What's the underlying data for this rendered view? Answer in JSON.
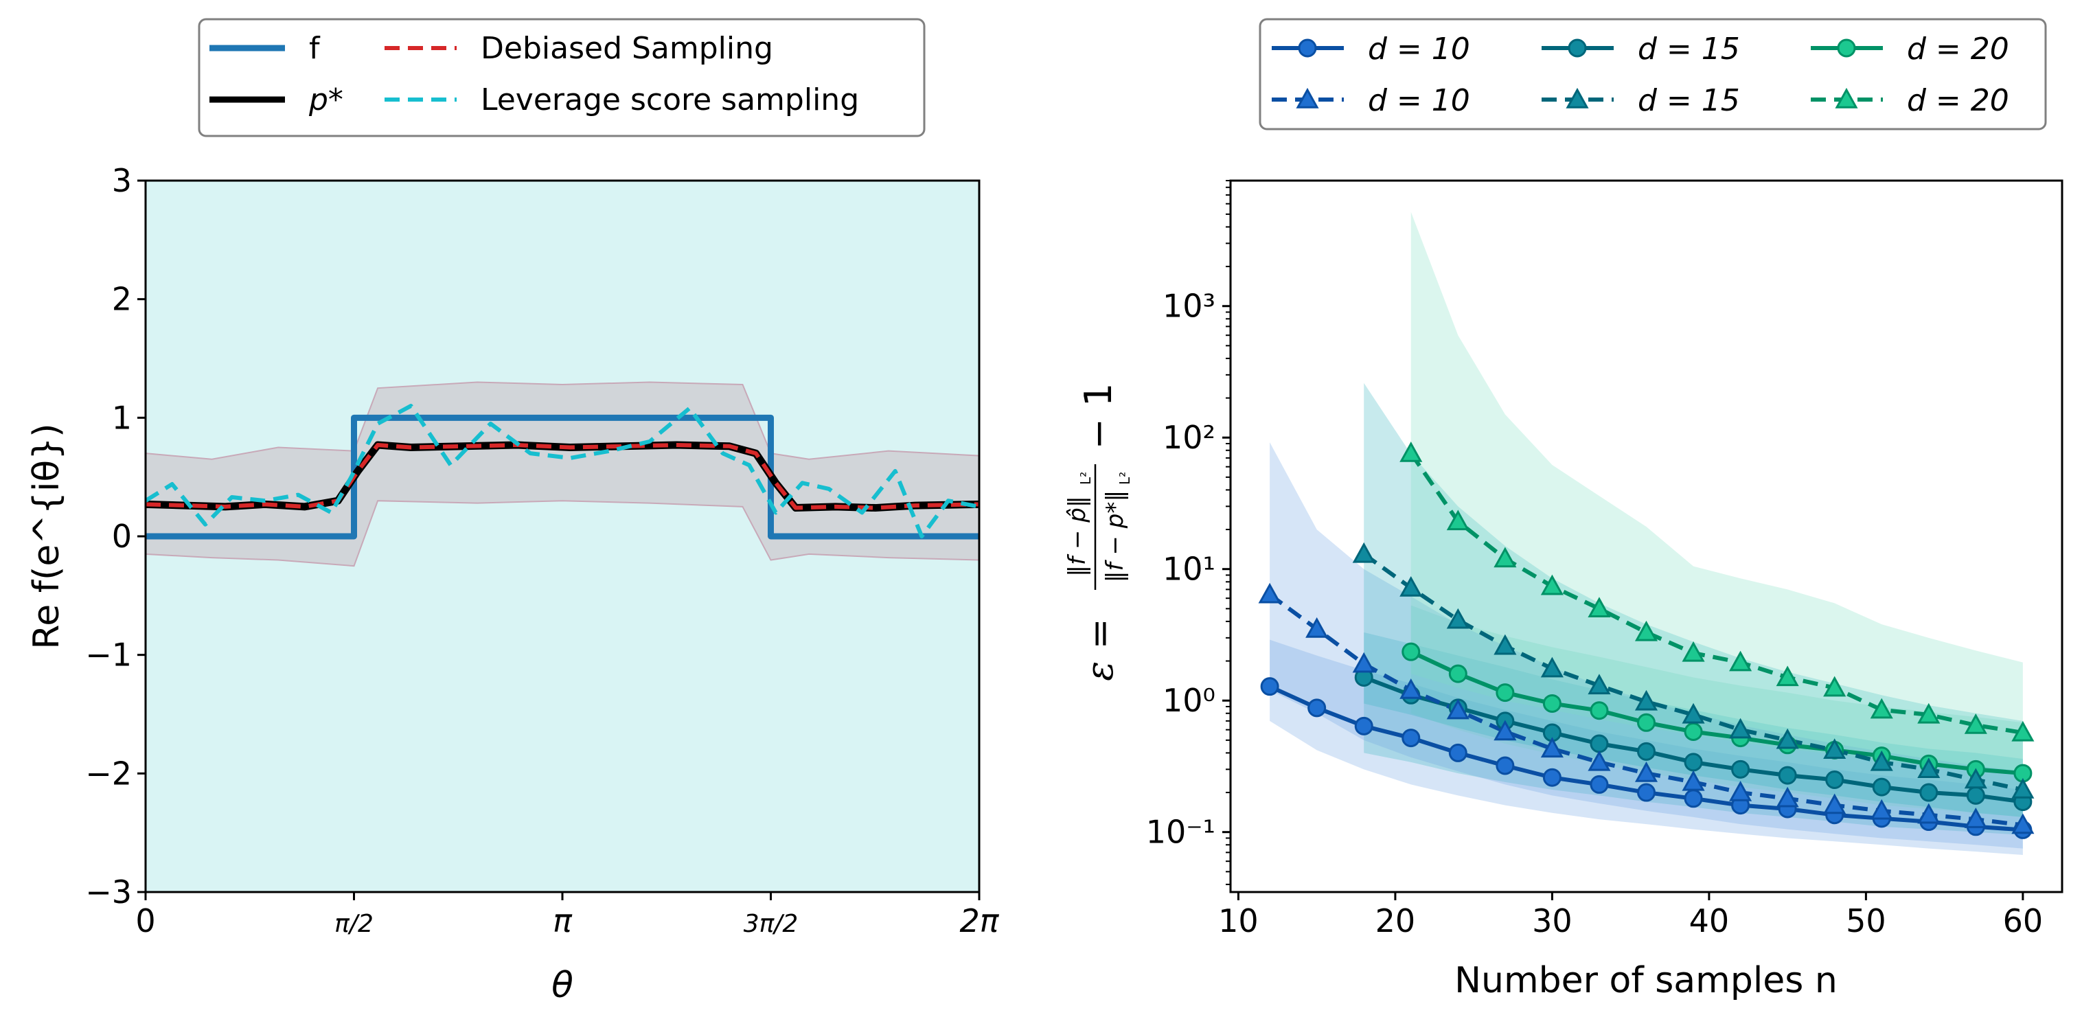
{
  "chart_data": [
    {
      "type": "line",
      "title": "",
      "xlabel": "θ",
      "ylabel": "Re f(e^{iθ})",
      "xlim": [
        0,
        6.2832
      ],
      "ylim": [
        -3,
        3
      ],
      "background": "#d9f4f4",
      "xticks": [
        {
          "value": 0,
          "label": "0"
        },
        {
          "value": 1.5708,
          "label": "π/2"
        },
        {
          "value": 3.1416,
          "label": "π"
        },
        {
          "value": 4.7124,
          "label": "3π/2"
        },
        {
          "value": 6.2832,
          "label": "2π"
        }
      ],
      "yticks": [
        {
          "value": 3,
          "label": "3"
        },
        {
          "value": 2,
          "label": "2"
        },
        {
          "value": 1,
          "label": "1"
        },
        {
          "value": 0,
          "label": "0"
        },
        {
          "value": -1,
          "label": "−1"
        },
        {
          "value": -2,
          "label": "−2"
        },
        {
          "value": -3,
          "label": "−3"
        }
      ],
      "legend": {
        "placement": "top",
        "entries": [
          {
            "label": "f",
            "color": "#1f77b4",
            "style": "solid"
          },
          {
            "label": "p*",
            "color": "#000000",
            "style": "solid"
          },
          {
            "label": "Debiased Sampling",
            "color": "#d62728",
            "style": "dashed"
          },
          {
            "label": "Leverage score sampling",
            "color": "#17becf",
            "style": "dashed"
          }
        ]
      },
      "series": [
        {
          "name": "f",
          "color": "#1f77b4",
          "x": [
            0,
            1.5708,
            1.5708,
            4.7124,
            4.7124,
            6.2832
          ],
          "y": [
            0,
            0,
            1,
            1,
            0,
            0
          ]
        },
        {
          "name": "p*",
          "color": "#000000",
          "x": [
            0,
            0.3,
            0.6,
            0.9,
            1.2,
            1.45,
            1.6,
            1.75,
            2.0,
            2.4,
            2.8,
            3.2,
            3.6,
            4.0,
            4.4,
            4.6,
            4.75,
            4.9,
            5.2,
            5.5,
            5.8,
            6.2832
          ],
          "y": [
            0.27,
            0.26,
            0.25,
            0.27,
            0.25,
            0.3,
            0.55,
            0.77,
            0.75,
            0.76,
            0.77,
            0.75,
            0.76,
            0.77,
            0.76,
            0.7,
            0.45,
            0.24,
            0.25,
            0.24,
            0.26,
            0.27
          ]
        },
        {
          "name": "Debiased Sampling",
          "color": "#d62728",
          "x": [
            0,
            0.3,
            0.6,
            0.9,
            1.2,
            1.45,
            1.6,
            1.75,
            2.0,
            2.4,
            2.8,
            3.2,
            3.6,
            4.0,
            4.4,
            4.6,
            4.75,
            4.9,
            5.2,
            5.5,
            5.8,
            6.2832
          ],
          "y": [
            0.27,
            0.26,
            0.25,
            0.27,
            0.25,
            0.3,
            0.55,
            0.77,
            0.75,
            0.76,
            0.77,
            0.75,
            0.76,
            0.77,
            0.76,
            0.7,
            0.45,
            0.24,
            0.25,
            0.24,
            0.26,
            0.27
          ]
        },
        {
          "name": "Leverage score sampling",
          "color": "#17becf",
          "x": [
            0,
            0.2,
            0.45,
            0.65,
            0.9,
            1.15,
            1.4,
            1.55,
            1.75,
            2.0,
            2.3,
            2.6,
            2.9,
            3.2,
            3.5,
            3.8,
            4.1,
            4.35,
            4.55,
            4.75,
            4.95,
            5.15,
            5.4,
            5.65,
            5.85,
            6.05,
            6.2832
          ],
          "y": [
            0.3,
            0.44,
            0.1,
            0.33,
            0.3,
            0.35,
            0.2,
            0.5,
            0.95,
            1.1,
            0.6,
            0.95,
            0.7,
            0.66,
            0.72,
            0.8,
            1.08,
            0.7,
            0.6,
            0.2,
            0.45,
            0.4,
            0.2,
            0.55,
            0.0,
            0.3,
            0.25
          ]
        }
      ],
      "band": {
        "label": "shaded region",
        "color": "#cfcfd4",
        "x": [
          0,
          0.5,
          1.0,
          1.5708,
          1.75,
          2.5,
          3.1416,
          3.8,
          4.5,
          4.7124,
          5.0,
          5.6,
          6.2832
        ],
        "upper": [
          0.7,
          0.65,
          0.75,
          0.72,
          1.25,
          1.3,
          1.28,
          1.3,
          1.28,
          0.7,
          0.65,
          0.72,
          0.68
        ],
        "lower": [
          -0.15,
          -0.18,
          -0.2,
          -0.25,
          0.3,
          0.28,
          0.3,
          0.28,
          0.25,
          -0.2,
          -0.15,
          -0.18,
          -0.2
        ]
      }
    },
    {
      "type": "line",
      "title": "",
      "xlabel": "Number of samples n",
      "ylabel": "ε = (‖f − p̂‖ / ‖f − p*‖) − 1",
      "ylabel_parts": {
        "lhs": "ε =",
        "num": "‖f − p̂‖",
        "num_sub": "L²",
        "den": "‖f − p*‖",
        "den_sub": "L²",
        "rhs": "− 1"
      },
      "yscale": "log",
      "xlim": [
        9.5,
        62.5
      ],
      "ylim": [
        0.035,
        9000
      ],
      "xticks": [
        10,
        20,
        30,
        40,
        50,
        60
      ],
      "ytick_labels": [
        {
          "value": 0.1,
          "label": "10⁻¹"
        },
        {
          "value": 1,
          "label": "10⁰"
        },
        {
          "value": 10,
          "label": "10¹"
        },
        {
          "value": 100,
          "label": "10²"
        },
        {
          "value": 1000,
          "label": "10³"
        }
      ],
      "legend": {
        "placement": "top",
        "columns": 3
      },
      "series": [
        {
          "name": "d = 10",
          "style": "solid",
          "marker": "circle",
          "color": "#0a4fa3",
          "fill": "#1f6fd0",
          "x": [
            12,
            15,
            18,
            21,
            24,
            27,
            30,
            33,
            36,
            39,
            42,
            45,
            48,
            51,
            54,
            57,
            60
          ],
          "y": [
            1.28,
            0.88,
            0.64,
            0.52,
            0.4,
            0.32,
            0.26,
            0.23,
            0.2,
            0.18,
            0.16,
            0.15,
            0.135,
            0.127,
            0.12,
            0.11,
            0.104
          ],
          "lower": [
            0.7,
            0.42,
            0.3,
            0.23,
            0.19,
            0.16,
            0.14,
            0.125,
            0.115,
            0.105,
            0.097,
            0.09,
            0.085,
            0.08,
            0.075,
            0.071,
            0.067
          ],
          "upper": [
            2.9,
            2.2,
            1.7,
            1.35,
            1.05,
            0.85,
            0.7,
            0.58,
            0.5,
            0.43,
            0.38,
            0.34,
            0.3,
            0.27,
            0.25,
            0.23,
            0.21
          ]
        },
        {
          "name": "d = 15",
          "style": "solid",
          "marker": "circle",
          "color": "#00667a",
          "fill": "#108a9e",
          "x": [
            18,
            21,
            24,
            27,
            30,
            33,
            36,
            39,
            42,
            45,
            48,
            51,
            54,
            57,
            60
          ],
          "y": [
            1.5,
            1.1,
            0.88,
            0.7,
            0.57,
            0.47,
            0.41,
            0.34,
            0.3,
            0.27,
            0.25,
            0.22,
            0.2,
            0.19,
            0.17
          ],
          "lower": [
            0.4,
            0.34,
            0.28,
            0.24,
            0.21,
            0.19,
            0.17,
            0.155,
            0.14,
            0.13,
            0.12,
            0.11,
            0.105,
            0.1,
            0.095
          ],
          "upper": [
            3.3,
            2.7,
            2.2,
            1.8,
            1.45,
            1.2,
            1.0,
            0.85,
            0.72,
            0.62,
            0.55,
            0.48,
            0.43,
            0.4,
            0.36
          ]
        },
        {
          "name": "d = 20",
          "style": "solid",
          "marker": "circle",
          "color": "#009266",
          "fill": "#1cc890",
          "x": [
            21,
            24,
            27,
            30,
            33,
            36,
            39,
            42,
            45,
            48,
            51,
            54,
            57,
            60
          ],
          "y": [
            2.35,
            1.6,
            1.15,
            0.95,
            0.84,
            0.68,
            0.58,
            0.52,
            0.46,
            0.42,
            0.38,
            0.33,
            0.3,
            0.28
          ],
          "lower": [
            0.8,
            0.6,
            0.47,
            0.39,
            0.33,
            0.28,
            0.25,
            0.22,
            0.2,
            0.18,
            0.16,
            0.15,
            0.14,
            0.13
          ],
          "upper": [
            5.3,
            3.9,
            3.1,
            2.55,
            2.15,
            1.8,
            1.5,
            1.3,
            1.15,
            1.0,
            0.9,
            0.82,
            0.75,
            0.68
          ]
        },
        {
          "name": "d = 10",
          "style": "dashed",
          "marker": "triangle",
          "color": "#0a4fa3",
          "fill": "#1f6fd0",
          "x": [
            12,
            15,
            18,
            21,
            24,
            27,
            30,
            33,
            36,
            39,
            42,
            45,
            48,
            51,
            54,
            57,
            60
          ],
          "y": [
            6.4,
            3.5,
            1.9,
            1.2,
            0.84,
            0.58,
            0.43,
            0.34,
            0.28,
            0.24,
            0.2,
            0.18,
            0.16,
            0.145,
            0.135,
            0.125,
            0.113
          ],
          "lower": [
            1.2,
            0.8,
            0.5,
            0.37,
            0.29,
            0.23,
            0.19,
            0.165,
            0.145,
            0.13,
            0.115,
            0.105,
            0.097,
            0.09,
            0.085,
            0.08,
            0.075
          ],
          "upper": [
            92,
            20,
            10,
            6.2,
            3.8,
            2.6,
            1.8,
            1.3,
            1.0,
            0.8,
            0.65,
            0.55,
            0.47,
            0.41,
            0.36,
            0.32,
            0.29
          ]
        },
        {
          "name": "d = 15",
          "style": "dashed",
          "marker": "triangle",
          "color": "#00667a",
          "fill": "#108a9e",
          "x": [
            18,
            21,
            24,
            27,
            30,
            33,
            36,
            39,
            42,
            45,
            48,
            51,
            54,
            57,
            60
          ],
          "y": [
            13,
            7.2,
            4.1,
            2.6,
            1.75,
            1.3,
            0.98,
            0.78,
            0.6,
            0.5,
            0.42,
            0.34,
            0.3,
            0.25,
            0.21
          ],
          "lower": [
            0.95,
            0.78,
            0.62,
            0.5,
            0.42,
            0.36,
            0.31,
            0.27,
            0.24,
            0.21,
            0.19,
            0.17,
            0.155,
            0.14,
            0.13
          ],
          "upper": [
            260,
            75,
            30,
            15,
            8.5,
            5.5,
            3.8,
            2.8,
            2.1,
            1.65,
            1.35,
            1.1,
            0.92,
            0.8,
            0.7
          ]
        },
        {
          "name": "d = 20",
          "style": "dashed",
          "marker": "triangle",
          "color": "#009266",
          "fill": "#1cc890",
          "x": [
            21,
            24,
            27,
            30,
            33,
            36,
            39,
            42,
            45,
            48,
            51,
            54,
            57,
            60
          ],
          "y": [
            76,
            23,
            12,
            7.4,
            5.0,
            3.3,
            2.3,
            1.95,
            1.5,
            1.25,
            0.85,
            0.78,
            0.65,
            0.57
          ],
          "lower": [
            1.6,
            1.25,
            1.0,
            0.85,
            0.72,
            0.62,
            0.55,
            0.48,
            0.43,
            0.39,
            0.35,
            0.32,
            0.29,
            0.27
          ],
          "upper": [
            5200,
            600,
            150,
            62,
            36,
            21,
            10.5,
            8.5,
            7.0,
            5.5,
            3.8,
            3.0,
            2.4,
            1.95
          ]
        }
      ]
    }
  ],
  "colors": {
    "f": "#1f77b4",
    "p_star": "#000000",
    "debiased": "#d62728",
    "leverage": "#17becf",
    "d10": "#0a4fa3",
    "d15": "#00667a",
    "d20": "#009266",
    "band_d10": "#8db7ea",
    "band_d15": "#66c3cf",
    "band_d20": "#9ee6cf"
  }
}
